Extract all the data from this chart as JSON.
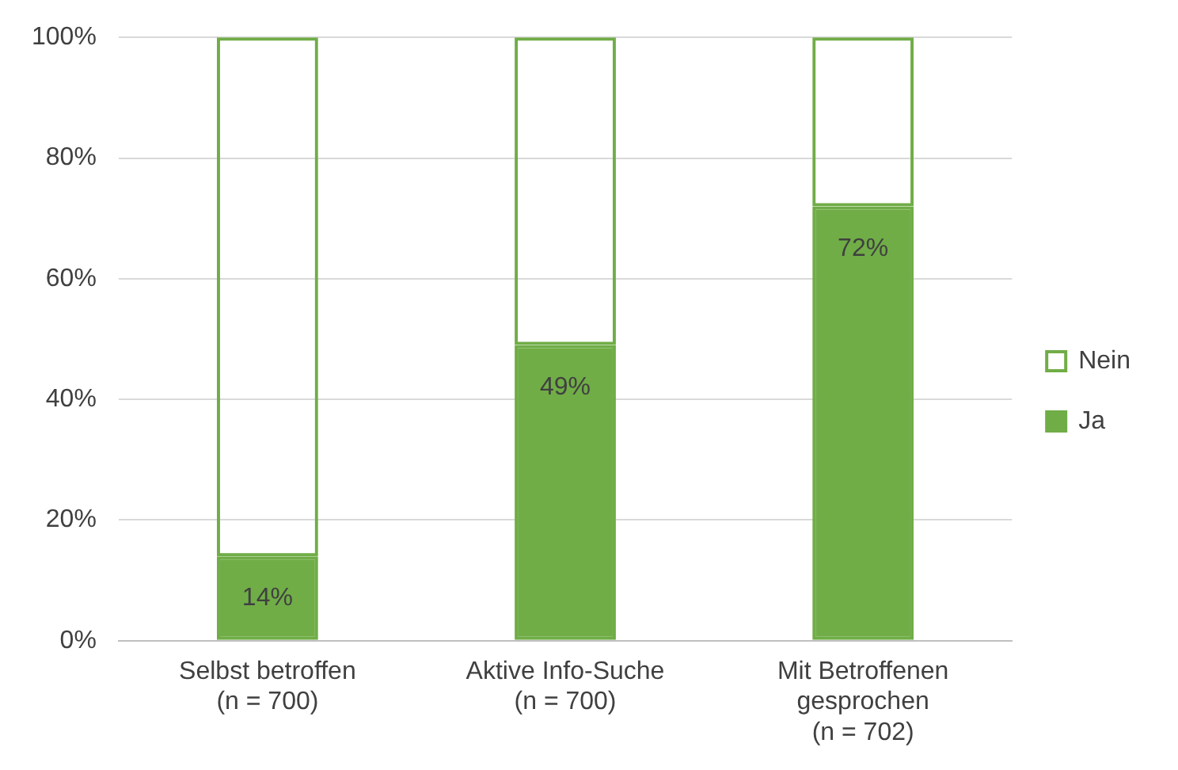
{
  "chart_data": {
    "type": "bar",
    "stacked": true,
    "categories": [
      "Selbst betroffen\n(n = 700)",
      "Aktive Info-Suche\n(n = 700)",
      "Mit Betroffenen\ngesprochen\n(n = 702)"
    ],
    "series": [
      {
        "name": "Ja",
        "color": "#70ad47",
        "values": [
          14,
          49,
          72
        ],
        "value_labels": [
          "14%",
          "49%",
          "72%"
        ]
      },
      {
        "name": "Nein",
        "color": "#70ad47",
        "values": [
          86,
          51,
          28
        ]
      }
    ],
    "ylim": [
      0,
      100
    ],
    "yticks": [
      {
        "value": 0,
        "label": "0%"
      },
      {
        "value": 20,
        "label": "20%"
      },
      {
        "value": 40,
        "label": "40%"
      },
      {
        "value": 60,
        "label": "60%"
      },
      {
        "value": 80,
        "label": "80%"
      },
      {
        "value": 100,
        "label": "100%"
      }
    ],
    "grid": "y",
    "legend": "right"
  }
}
